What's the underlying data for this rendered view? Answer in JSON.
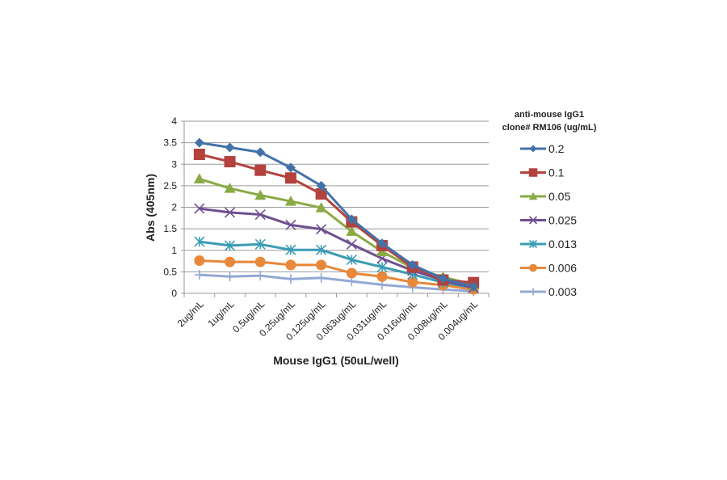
{
  "chart_data": {
    "type": "line",
    "title": "",
    "xlabel": "Mouse IgG1 (50uL/well)",
    "ylabel": "Abs (405nm)",
    "ylim": [
      0,
      4
    ],
    "yticks": [
      "0",
      "0.5",
      "1",
      "1.5",
      "2",
      "2.5",
      "3",
      "3.5",
      "4"
    ],
    "grid": true,
    "legend_position": "right",
    "legend_title": [
      "anti-mouse IgG1",
      "clone# RM106 (ug/mL)"
    ],
    "categories": [
      "2ug/mL",
      "1ug/mL",
      "0.5ug/mL",
      "0.25ug/mL",
      "0.125ug/mL",
      "0.063ug/mL",
      "0.031ug/mL",
      "0.016ug/mL",
      "0.008ug/mL",
      "0.004ug/mL"
    ],
    "series": [
      {
        "name": "0.2",
        "color": "#4472a8",
        "marker": "diamond",
        "values": [
          3.5,
          3.39,
          3.28,
          2.92,
          2.5,
          1.72,
          1.16,
          0.66,
          0.34,
          0.16
        ]
      },
      {
        "name": "0.1",
        "color": "#b3423d",
        "marker": "square",
        "values": [
          3.23,
          3.06,
          2.86,
          2.68,
          2.31,
          1.66,
          1.11,
          0.61,
          0.31,
          0.25
        ]
      },
      {
        "name": "0.05",
        "color": "#8aaa45",
        "marker": "triangle",
        "values": [
          2.66,
          2.44,
          2.28,
          2.14,
          1.99,
          1.44,
          0.97,
          0.59,
          0.38,
          0.2
        ]
      },
      {
        "name": "0.025",
        "color": "#6e4f90",
        "marker": "x",
        "values": [
          1.97,
          1.88,
          1.83,
          1.59,
          1.49,
          1.14,
          0.81,
          0.53,
          0.3,
          0.13
        ]
      },
      {
        "name": "0.013",
        "color": "#3a9cb3",
        "marker": "asterisk",
        "values": [
          1.2,
          1.11,
          1.14,
          1.01,
          1.01,
          0.78,
          0.61,
          0.44,
          0.25,
          0.13
        ]
      },
      {
        "name": "0.006",
        "color": "#e8883a",
        "marker": "circle",
        "values": [
          0.76,
          0.73,
          0.73,
          0.66,
          0.66,
          0.47,
          0.39,
          0.26,
          0.19,
          0.09
        ]
      },
      {
        "name": "0.003",
        "color": "#93a9d4",
        "marker": "plus",
        "values": [
          0.43,
          0.39,
          0.41,
          0.33,
          0.36,
          0.28,
          0.2,
          0.14,
          0.09,
          0.05
        ]
      }
    ]
  }
}
